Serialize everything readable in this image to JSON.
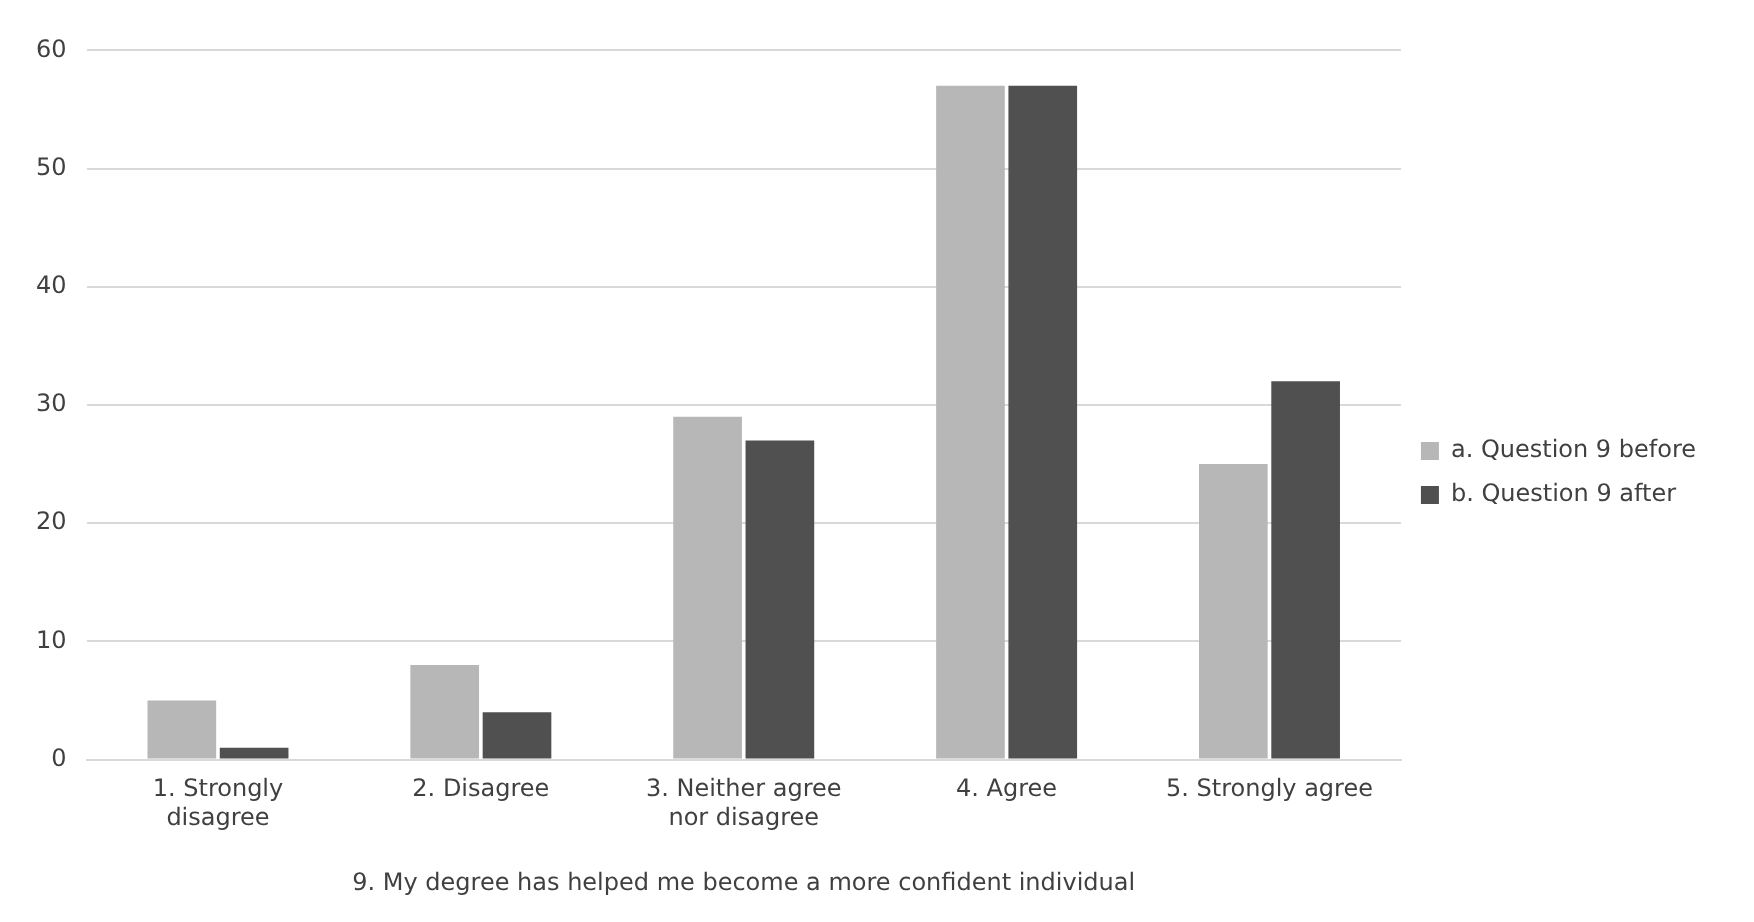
{
  "chart_data": {
    "type": "bar",
    "xlabel": "9. My degree has helped me become a more confident individual",
    "categories": [
      "1. Strongly disagree",
      "2. Disagree",
      "3. Neither agree nor disagree",
      "4. Agree",
      "5. Strongly agree"
    ],
    "series": [
      {
        "name": "a. Question 9 before",
        "color": "#b7b7b7",
        "values": [
          5,
          8,
          29,
          57,
          25
        ]
      },
      {
        "name": "b. Question 9 after",
        "color": "#505050",
        "values": [
          1,
          4,
          27,
          57,
          32
        ]
      }
    ],
    "ylim": [
      0,
      60
    ],
    "yticks": [
      0,
      10,
      20,
      30,
      40,
      50,
      60
    ],
    "grid": "y",
    "legend": "right"
  }
}
